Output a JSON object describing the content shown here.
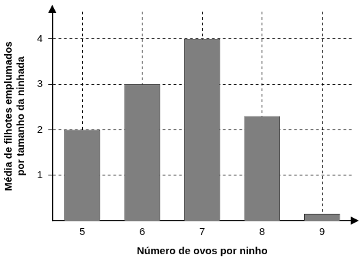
{
  "chart_data": {
    "type": "bar",
    "categories": [
      "5",
      "6",
      "7",
      "8",
      "9"
    ],
    "values": [
      2,
      3,
      4,
      2.3,
      0.15
    ],
    "color": "#7f7f7f",
    "x_label": "Número de ovos por ninho",
    "y_label": [
      "Média de filhotes emplumados",
      "por tamanho da ninhada"
    ],
    "ylim": [
      0,
      4.6
    ],
    "yticks": [
      1,
      2,
      3,
      4
    ],
    "grid": true
  }
}
